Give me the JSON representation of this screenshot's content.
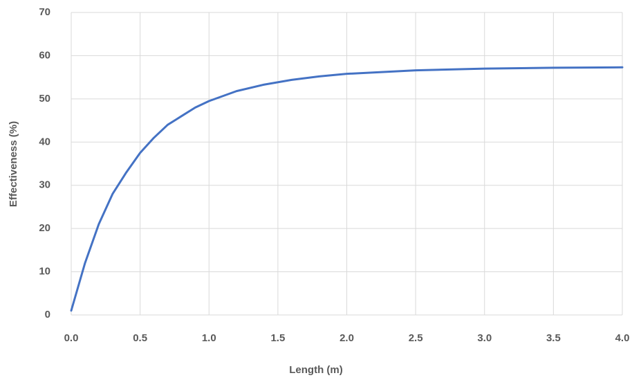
{
  "chart_data": {
    "type": "line",
    "x_label": "Length (m)",
    "y_label": "Effectiveness (%)",
    "x": [
      0,
      0.1,
      0.2,
      0.3,
      0.4,
      0.5,
      0.6,
      0.7,
      0.8,
      0.9,
      1.0,
      1.2,
      1.4,
      1.6,
      1.8,
      2.0,
      2.5,
      3.0,
      3.5,
      4.0
    ],
    "series": [
      {
        "color": "#4472c4",
        "values": [
          1,
          12,
          21,
          28,
          33,
          37.5,
          41,
          44,
          46,
          48,
          49.5,
          51.8,
          53.3,
          54.4,
          55.2,
          55.8,
          56.6,
          57,
          57.2,
          57.3
        ]
      }
    ],
    "xlim": [
      0,
      4
    ],
    "ylim": [
      0,
      70
    ],
    "xticks": [
      {
        "value": 0,
        "label": "0.0"
      },
      {
        "value": 0.5,
        "label": "0.5"
      },
      {
        "value": 1,
        "label": "1.0"
      },
      {
        "value": 1.5,
        "label": "1.5"
      },
      {
        "value": 2,
        "label": "2.0"
      },
      {
        "value": 2.5,
        "label": "2.5"
      },
      {
        "value": 3,
        "label": "3.0"
      },
      {
        "value": 3.5,
        "label": "3.5"
      },
      {
        "value": 4,
        "label": "4.0"
      }
    ],
    "yticks": [
      0,
      10,
      20,
      30,
      40,
      50,
      60,
      70
    ],
    "grid": true
  }
}
